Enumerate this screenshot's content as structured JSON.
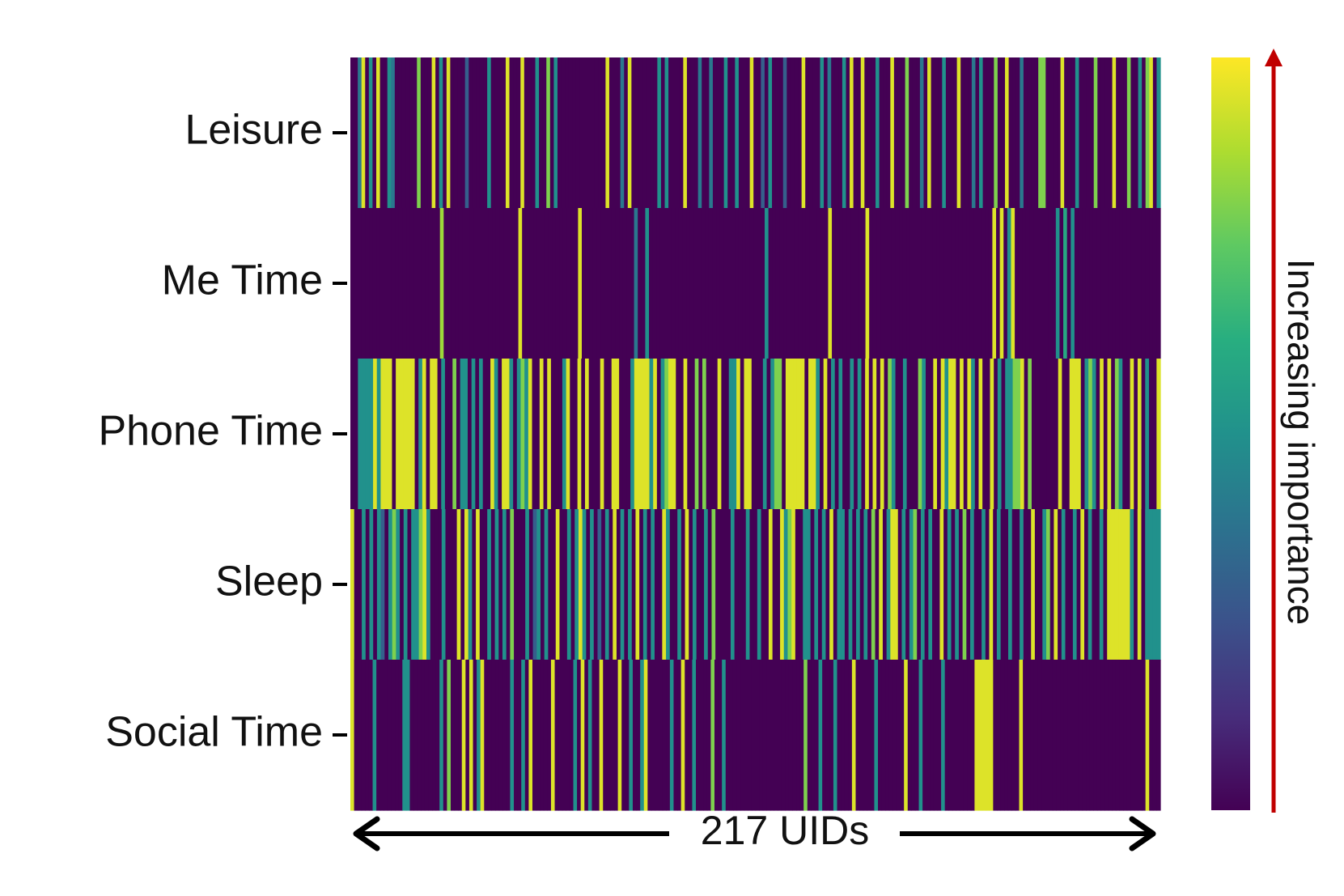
{
  "chart_data": {
    "type": "heatmap",
    "title": "",
    "xlabel": "217 UIDs",
    "ylabel": "",
    "row_labels": [
      "Leisure",
      "Me Time",
      "Phone Time",
      "Sleep",
      "Social Time"
    ],
    "n_columns": 217,
    "value_range": [
      0,
      1
    ],
    "colormap": "viridis",
    "colorbar_label": "Increasing importance",
    "colorbar_tick_labels": [],
    "legend_placement": "right",
    "grid": false,
    "values": [
      [
        0.0,
        0.0,
        0.4,
        0.95,
        0.0,
        0.5,
        0.0,
        0.95,
        0.0,
        0.0,
        0.5,
        0.4,
        0.0,
        0.0,
        0.0,
        0.0,
        0.0,
        0.0,
        0.8,
        0.0,
        0.0,
        0.0,
        0.95,
        0.0,
        0.5,
        0.0,
        0.95,
        0.0,
        0.0,
        0.0,
        0.0,
        0.3,
        0.0,
        0.0,
        0.0,
        0.0,
        0.0,
        0.5,
        0.0,
        0.0,
        0.0,
        0.0,
        0.95,
        0.0,
        0.0,
        0.0,
        0.95,
        0.0,
        0.0,
        0.0,
        0.5,
        0.0,
        0.0,
        0.8,
        0.0,
        0.5,
        0.0,
        0.0,
        0.0,
        0.0,
        0.0,
        0.0,
        0.0,
        0.0,
        0.0,
        0.0,
        0.0,
        0.0,
        0.0,
        0.95,
        0.0,
        0.0,
        0.0,
        0.4,
        0.0,
        0.95,
        0.0,
        0.0,
        0.0,
        0.0,
        0.0,
        0.0,
        0.0,
        0.5,
        0.0,
        0.5,
        0.0,
        0.0,
        0.0,
        0.0,
        0.95,
        0.0,
        0.0,
        0.0,
        0.4,
        0.0,
        0.0,
        0.4,
        0.0,
        0.0,
        0.0,
        0.5,
        0.0,
        0.0,
        0.5,
        0.0,
        0.0,
        0.0,
        0.95,
        0.0,
        0.0,
        0.3,
        0.0,
        0.5,
        0.0,
        0.0,
        0.0,
        0.3,
        0.0,
        0.0,
        0.0,
        0.0,
        0.95,
        0.0,
        0.0,
        0.0,
        0.0,
        0.5,
        0.0,
        0.4,
        0.0,
        0.0,
        0.0,
        0.5,
        0.0,
        0.95,
        0.0,
        0.0,
        0.95,
        0.0,
        0.0,
        0.0,
        0.5,
        0.0,
        0.0,
        0.0,
        0.95,
        0.0,
        0.0,
        0.0,
        0.8,
        0.0,
        0.0,
        0.0,
        0.4,
        0.0,
        0.95,
        0.0,
        0.0,
        0.0,
        0.5,
        0.0,
        0.0,
        0.0,
        0.95,
        0.0,
        0.0,
        0.0,
        0.4,
        0.0,
        0.5,
        0.0,
        0.0,
        0.0,
        0.8,
        0.0,
        0.0,
        0.95,
        0.0,
        0.0,
        0.0,
        0.4,
        0.0,
        0.0,
        0.0,
        0.0,
        0.8,
        0.8,
        0.0,
        0.0,
        0.0,
        0.0,
        0.95,
        0.0,
        0.0,
        0.0,
        0.5,
        0.0,
        0.0,
        0.0,
        0.0,
        0.8,
        0.0,
        0.0,
        0.0,
        0.0,
        0.95,
        0.0,
        0.0,
        0.0,
        0.8,
        0.0,
        0.0,
        0.5,
        0.0,
        0.8,
        0.95,
        0.0,
        0.5
      ],
      [
        0.0,
        0.0,
        0.0,
        0.0,
        0.0,
        0.0,
        0.0,
        0.0,
        0.0,
        0.0,
        0.0,
        0.0,
        0.0,
        0.0,
        0.0,
        0.0,
        0.0,
        0.0,
        0.0,
        0.0,
        0.0,
        0.0,
        0.0,
        0.0,
        0.85,
        0.0,
        0.0,
        0.0,
        0.0,
        0.0,
        0.0,
        0.0,
        0.0,
        0.0,
        0.0,
        0.0,
        0.0,
        0.0,
        0.0,
        0.0,
        0.0,
        0.0,
        0.0,
        0.0,
        0.0,
        0.95,
        0.0,
        0.0,
        0.0,
        0.0,
        0.0,
        0.0,
        0.0,
        0.0,
        0.0,
        0.0,
        0.0,
        0.0,
        0.0,
        0.0,
        0.0,
        0.95,
        0.0,
        0.0,
        0.0,
        0.0,
        0.0,
        0.0,
        0.0,
        0.0,
        0.0,
        0.0,
        0.0,
        0.0,
        0.0,
        0.0,
        0.4,
        0.0,
        0.0,
        0.5,
        0.0,
        0.0,
        0.0,
        0.0,
        0.0,
        0.0,
        0.0,
        0.0,
        0.0,
        0.0,
        0.0,
        0.0,
        0.0,
        0.0,
        0.0,
        0.0,
        0.0,
        0.0,
        0.0,
        0.0,
        0.0,
        0.0,
        0.0,
        0.0,
        0.0,
        0.0,
        0.0,
        0.0,
        0.0,
        0.0,
        0.0,
        0.5,
        0.0,
        0.0,
        0.0,
        0.0,
        0.0,
        0.0,
        0.0,
        0.0,
        0.0,
        0.0,
        0.0,
        0.0,
        0.0,
        0.0,
        0.0,
        0.0,
        0.95,
        0.0,
        0.0,
        0.0,
        0.0,
        0.0,
        0.0,
        0.0,
        0.0,
        0.0,
        0.95,
        0.0,
        0.0,
        0.0,
        0.0,
        0.0,
        0.0,
        0.0,
        0.0,
        0.0,
        0.0,
        0.0,
        0.0,
        0.0,
        0.0,
        0.0,
        0.0,
        0.0,
        0.0,
        0.0,
        0.0,
        0.0,
        0.0,
        0.0,
        0.0,
        0.0,
        0.0,
        0.0,
        0.0,
        0.0,
        0.0,
        0.0,
        0.0,
        0.0,
        0.95,
        0.0,
        0.95,
        0.0,
        0.5,
        0.95,
        0.0,
        0.0,
        0.0,
        0.0,
        0.0,
        0.0,
        0.0,
        0.0,
        0.0,
        0.0,
        0.0,
        0.5,
        0.0,
        0.6,
        0.0,
        0.5,
        0.0,
        0.0,
        0.0,
        0.0,
        0.0,
        0.0,
        0.0,
        0.0,
        0.0,
        0.0,
        0.0,
        0.0,
        0.0,
        0.0,
        0.0,
        0.0,
        0.0,
        0.0,
        0.0,
        0.0,
        0.0,
        0.0,
        0.0
      ],
      [
        0.0,
        0.0,
        0.5,
        0.5,
        0.5,
        0.5,
        0.95,
        0.5,
        0.95,
        0.95,
        0.95,
        0.0,
        0.95,
        0.95,
        0.95,
        0.95,
        0.95,
        0.0,
        0.5,
        0.95,
        0.0,
        0.95,
        0.95,
        0.0,
        0.5,
        0.0,
        0.0,
        0.8,
        0.0,
        0.5,
        0.5,
        0.0,
        0.5,
        0.0,
        0.5,
        0.0,
        0.0,
        0.95,
        0.5,
        0.0,
        0.95,
        0.95,
        0.5,
        0.0,
        0.5,
        0.8,
        0.5,
        0.95,
        0.0,
        0.0,
        0.95,
        0.0,
        0.95,
        0.0,
        0.0,
        0.0,
        0.5,
        0.95,
        0.0,
        0.0,
        0.95,
        0.0,
        0.95,
        0.0,
        0.0,
        0.0,
        0.95,
        0.0,
        0.0,
        0.95,
        0.95,
        0.0,
        0.0,
        0.0,
        0.5,
        0.95,
        0.95,
        0.95,
        0.95,
        0.5,
        0.95,
        0.0,
        0.5,
        0.8,
        0.95,
        0.95,
        0.0,
        0.0,
        0.95,
        0.0,
        0.0,
        0.8,
        0.0,
        0.8,
        0.0,
        0.0,
        0.0,
        0.95,
        0.0,
        0.0,
        0.5,
        0.5,
        0.95,
        0.0,
        0.95,
        0.95,
        0.0,
        0.0,
        0.0,
        0.5,
        0.0,
        0.5,
        0.8,
        0.8,
        0.0,
        0.95,
        0.95,
        0.95,
        0.95,
        0.95,
        0.0,
        0.95,
        0.95,
        0.5,
        0.0,
        0.95,
        0.0,
        0.5,
        0.0,
        0.5,
        0.0,
        0.0,
        0.5,
        0.0,
        0.5,
        0.0,
        0.95,
        0.0,
        0.95,
        0.0,
        0.95,
        0.0,
        0.8,
        0.5,
        0.0,
        0.0,
        0.5,
        0.0,
        0.0,
        0.0,
        0.8,
        0.5,
        0.0,
        0.0,
        0.95,
        0.0,
        0.95,
        0.5,
        0.95,
        0.95,
        0.0,
        0.95,
        0.0,
        0.95,
        0.5,
        0.0,
        0.95,
        0.0,
        0.0,
        0.95,
        0.0,
        0.5,
        0.0,
        0.5,
        0.5,
        0.8,
        0.8,
        0.95,
        0.0,
        0.8,
        0.0,
        0.0,
        0.0,
        0.0,
        0.0,
        0.0,
        0.0,
        0.95,
        0.0,
        0.0,
        0.95,
        0.95,
        0.95,
        0.0,
        0.5,
        0.8,
        0.5,
        0.0,
        0.95,
        0.0,
        0.95,
        0.0,
        0.8,
        0.5,
        0.0,
        0.0,
        0.95,
        0.0,
        0.95,
        0.0,
        0.5,
        0.0,
        0.0,
        0.95
      ],
      [
        0.95,
        0.0,
        0.0,
        0.5,
        0.0,
        0.5,
        0.0,
        0.5,
        0.3,
        0.0,
        0.5,
        0.8,
        0.5,
        0.0,
        0.5,
        0.0,
        0.5,
        0.5,
        0.8,
        0.95,
        0.5,
        0.0,
        0.0,
        0.0,
        0.5,
        0.0,
        0.0,
        0.0,
        0.95,
        0.0,
        0.95,
        0.5,
        0.0,
        0.95,
        0.0,
        0.0,
        0.5,
        0.0,
        0.5,
        0.0,
        0.5,
        0.0,
        0.8,
        0.0,
        0.0,
        0.0,
        0.5,
        0.0,
        0.3,
        0.5,
        0.0,
        0.5,
        0.0,
        0.0,
        0.95,
        0.0,
        0.0,
        0.5,
        0.0,
        0.5,
        0.95,
        0.5,
        0.0,
        0.5,
        0.0,
        0.3,
        0.0,
        0.5,
        0.0,
        0.95,
        0.0,
        0.5,
        0.0,
        0.5,
        0.0,
        0.95,
        0.0,
        0.5,
        0.0,
        0.5,
        0.0,
        0.0,
        0.95,
        0.5,
        0.0,
        0.0,
        0.5,
        0.0,
        0.95,
        0.0,
        0.5,
        0.0,
        0.0,
        0.5,
        0.0,
        0.8,
        0.0,
        0.0,
        0.0,
        0.0,
        0.5,
        0.0,
        0.0,
        0.0,
        0.5,
        0.0,
        0.0,
        0.5,
        0.0,
        0.0,
        0.95,
        0.0,
        0.0,
        0.95,
        0.5,
        0.8,
        0.95,
        0.0,
        0.0,
        0.5,
        0.5,
        0.0,
        0.5,
        0.0,
        0.5,
        0.0,
        0.95,
        0.0,
        0.5,
        0.5,
        0.0,
        0.5,
        0.0,
        0.5,
        0.0,
        0.5,
        0.0,
        0.8,
        0.0,
        0.95,
        0.0,
        0.5,
        0.95,
        0.95,
        0.0,
        0.5,
        0.0,
        0.5,
        0.8,
        0.0,
        0.5,
        0.0,
        0.5,
        0.0,
        0.0,
        0.95,
        0.0,
        0.5,
        0.0,
        0.5,
        0.0,
        0.8,
        0.0,
        0.5,
        0.0,
        0.0,
        0.5,
        0.0,
        0.95,
        0.0,
        0.5,
        0.0,
        0.0,
        0.5,
        0.0,
        0.0,
        0.5,
        0.0,
        0.0,
        0.95,
        0.0,
        0.0,
        0.5,
        0.8,
        0.0,
        0.95,
        0.0,
        0.5,
        0.0,
        0.0,
        0.5,
        0.0,
        0.95,
        0.0,
        0.5,
        0.0,
        0.0,
        0.5,
        0.0,
        0.95,
        0.95,
        0.95,
        0.95,
        0.95,
        0.95,
        0.5,
        0.0,
        0.95,
        0.0,
        0.5,
        0.5,
        0.5,
        0.5
      ],
      [
        0.95,
        0.0,
        0.0,
        0.0,
        0.0,
        0.0,
        0.5,
        0.0,
        0.0,
        0.0,
        0.0,
        0.0,
        0.0,
        0.0,
        0.5,
        0.5,
        0.0,
        0.0,
        0.0,
        0.0,
        0.0,
        0.0,
        0.0,
        0.0,
        0.5,
        0.0,
        0.8,
        0.0,
        0.0,
        0.0,
        0.95,
        0.0,
        0.95,
        0.0,
        0.5,
        0.95,
        0.0,
        0.0,
        0.0,
        0.0,
        0.0,
        0.0,
        0.0,
        0.5,
        0.0,
        0.0,
        0.5,
        0.0,
        0.95,
        0.0,
        0.0,
        0.0,
        0.0,
        0.0,
        0.95,
        0.0,
        0.0,
        0.0,
        0.0,
        0.0,
        0.5,
        0.0,
        0.95,
        0.0,
        0.5,
        0.0,
        0.0,
        0.95,
        0.0,
        0.0,
        0.0,
        0.0,
        0.95,
        0.0,
        0.0,
        0.5,
        0.0,
        0.0,
        0.5,
        0.95,
        0.0,
        0.0,
        0.0,
        0.0,
        0.0,
        0.0,
        0.5,
        0.0,
        0.0,
        0.95,
        0.0,
        0.0,
        0.5,
        0.0,
        0.0,
        0.0,
        0.0,
        0.8,
        0.0,
        0.0,
        0.5,
        0.0,
        0.0,
        0.0,
        0.0,
        0.0,
        0.0,
        0.0,
        0.0,
        0.0,
        0.0,
        0.0,
        0.0,
        0.0,
        0.0,
        0.0,
        0.0,
        0.0,
        0.0,
        0.0,
        0.0,
        0.0,
        0.8,
        0.0,
        0.0,
        0.0,
        0.5,
        0.0,
        0.0,
        0.0,
        0.5,
        0.0,
        0.0,
        0.0,
        0.0,
        0.95,
        0.0,
        0.0,
        0.0,
        0.0,
        0.0,
        0.5,
        0.0,
        0.0,
        0.0,
        0.0,
        0.0,
        0.0,
        0.0,
        0.95,
        0.0,
        0.0,
        0.0,
        0.5,
        0.0,
        0.0,
        0.0,
        0.0,
        0.0,
        0.5,
        0.0,
        0.0,
        0.0,
        0.0,
        0.0,
        0.0,
        0.0,
        0.0,
        0.95,
        0.95,
        0.95,
        0.95,
        0.95,
        0.0,
        0.0,
        0.0,
        0.0,
        0.0,
        0.0,
        0.0,
        0.95,
        0.0,
        0.0,
        0.0,
        0.0,
        0.0,
        0.0,
        0.0,
        0.0,
        0.0,
        0.0,
        0.0,
        0.0,
        0.0,
        0.0,
        0.0,
        0.0,
        0.0,
        0.0,
        0.0,
        0.0,
        0.0,
        0.0,
        0.0,
        0.0,
        0.0,
        0.0,
        0.0,
        0.0,
        0.0,
        0.0,
        0.0,
        0.0,
        0.0,
        0.95,
        0.0,
        0.0,
        0.0
      ]
    ]
  },
  "colors": {
    "arrow_axis": "#000000",
    "colorbar_arrow": "#c00000",
    "colorbar_label": "#c00000",
    "text": "#111111"
  }
}
